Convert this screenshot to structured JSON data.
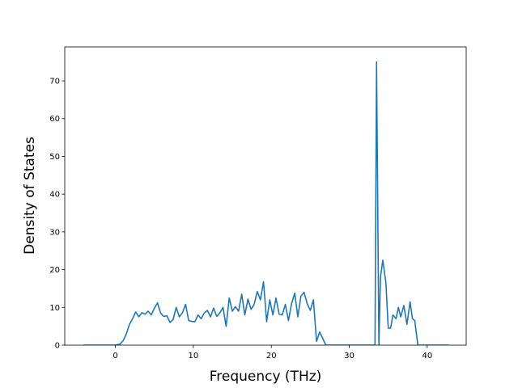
{
  "chart_data": {
    "type": "line",
    "title": "",
    "xlabel": "Frequency (THz)",
    "ylabel": "Density of States",
    "xlim": [
      -6.5,
      45
    ],
    "ylim": [
      0,
      79
    ],
    "x_ticks": [
      0,
      10,
      20,
      30,
      40
    ],
    "y_ticks": [
      0,
      10,
      20,
      30,
      40,
      50,
      60,
      70
    ],
    "grid": false,
    "legend": "none",
    "colors": {
      "series": "#1f77b4"
    },
    "series": [
      {
        "x": [
          -4.0,
          -3.0,
          -2.0,
          -1.0,
          0.0,
          0.6,
          1.0,
          1.4,
          1.8,
          2.2,
          2.6,
          3.0,
          3.4,
          3.8,
          4.2,
          4.6,
          5.0,
          5.4,
          5.8,
          6.2,
          6.6,
          7.0,
          7.4,
          7.8,
          8.2,
          8.6,
          9.0,
          9.4,
          9.8,
          10.2,
          10.6,
          11.0,
          11.4,
          11.8,
          12.2,
          12.6,
          13.0,
          13.4,
          13.8,
          14.2,
          14.6,
          15.0,
          15.4,
          15.8,
          16.2,
          16.6,
          17.0,
          17.4,
          17.8,
          18.2,
          18.6,
          19.0,
          19.4,
          19.8,
          20.2,
          20.6,
          21.0,
          21.4,
          21.8,
          22.2,
          22.6,
          23.0,
          23.4,
          23.8,
          24.2,
          24.6,
          25.0,
          25.4,
          25.8,
          26.2,
          27.0,
          28.0,
          29.0,
          30.0,
          31.0,
          32.0,
          33.0,
          33.3,
          33.5,
          33.8,
          34.0,
          34.3,
          34.7,
          35.0,
          35.3,
          35.6,
          36.0,
          36.3,
          36.6,
          37.0,
          37.4,
          37.8,
          38.1,
          38.4,
          38.8,
          39.2,
          39.6,
          40.0,
          41.0,
          42.0,
          42.7
        ],
        "y": [
          0,
          0,
          0,
          0,
          0,
          0.3,
          1.2,
          3.0,
          5.5,
          7.0,
          8.8,
          7.5,
          8.6,
          8.2,
          9.0,
          8.0,
          9.8,
          11.2,
          8.5,
          7.6,
          7.8,
          6.0,
          6.8,
          10.0,
          7.5,
          8.6,
          10.8,
          6.5,
          6.3,
          6.2,
          8.0,
          7.0,
          8.5,
          9.2,
          7.5,
          9.8,
          7.6,
          8.6,
          10.0,
          5.0,
          12.5,
          9.0,
          10.2,
          9.0,
          13.5,
          8.0,
          12.2,
          9.5,
          10.8,
          14.2,
          12.0,
          16.8,
          6.2,
          12.0,
          8.0,
          12.5,
          8.2,
          8.0,
          10.8,
          6.5,
          11.0,
          13.8,
          7.5,
          13.0,
          14.0,
          11.0,
          9.2,
          12.0,
          1.0,
          3.5,
          0,
          0,
          0,
          0,
          0,
          0,
          0,
          0,
          75.0,
          0,
          18.0,
          22.5,
          16.5,
          4.5,
          4.5,
          8.0,
          7.0,
          10.0,
          7.5,
          10.5,
          5.5,
          11.5,
          7.0,
          6.5,
          0,
          0,
          0,
          0,
          0,
          0,
          0
        ]
      }
    ]
  }
}
